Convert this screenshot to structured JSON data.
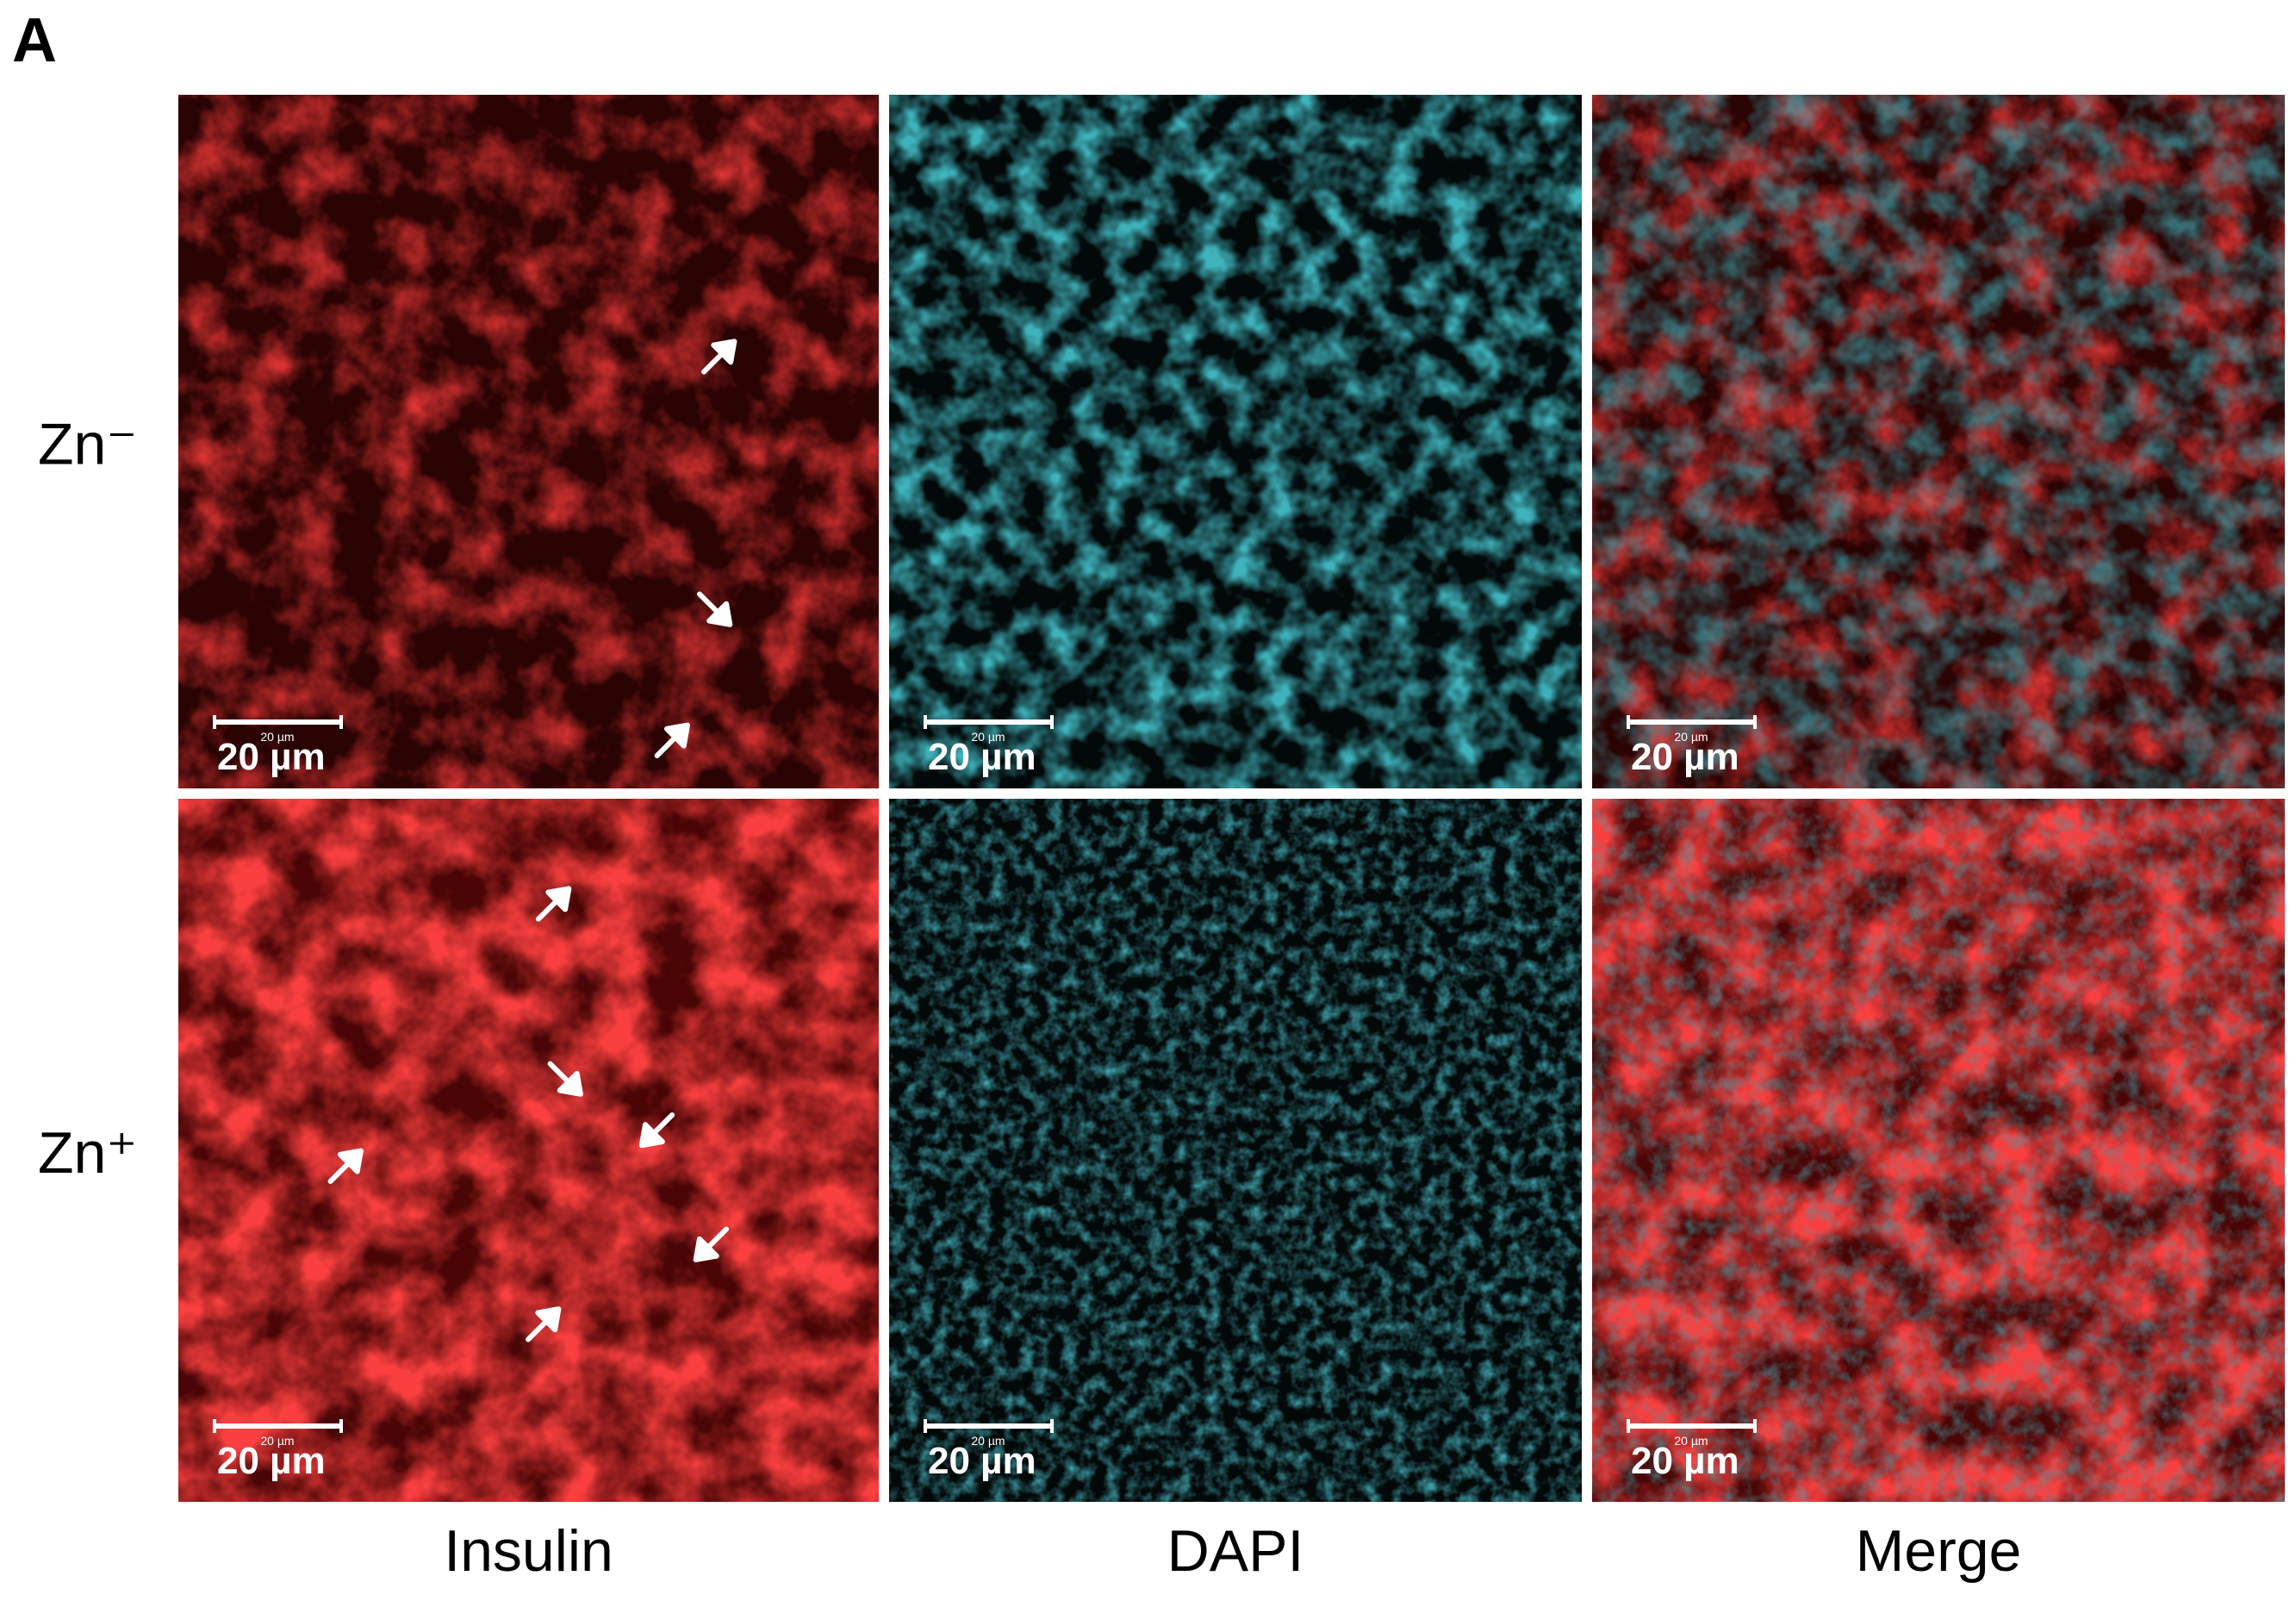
{
  "panel_label": "A",
  "row_labels": [
    "Zn⁻",
    "Zn⁺"
  ],
  "column_labels": [
    "Insulin",
    "DAPI",
    "Merge"
  ],
  "scale_bar_label": "20 µm"
}
